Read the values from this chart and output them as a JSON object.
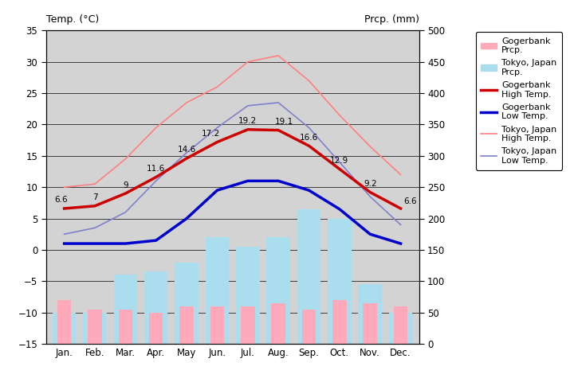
{
  "months": [
    "Jan.",
    "Feb.",
    "Mar.",
    "Apr.",
    "May",
    "Jun.",
    "Jul.",
    "Aug.",
    "Sep.",
    "Oct.",
    "Nov.",
    "Dec."
  ],
  "gogerbank_high": [
    6.6,
    7.0,
    9.0,
    11.6,
    14.6,
    17.2,
    19.2,
    19.1,
    16.6,
    12.9,
    9.2,
    6.6
  ],
  "gogerbank_low": [
    1.0,
    1.0,
    1.0,
    1.5,
    5.0,
    9.5,
    11.0,
    11.0,
    9.5,
    6.5,
    2.5,
    1.0
  ],
  "tokyo_high": [
    10.0,
    10.5,
    14.5,
    19.5,
    23.5,
    26.0,
    30.0,
    31.0,
    27.0,
    21.5,
    16.5,
    12.0
  ],
  "tokyo_low": [
    2.5,
    3.5,
    6.0,
    11.0,
    15.5,
    19.5,
    23.0,
    23.5,
    19.5,
    14.0,
    8.5,
    4.0
  ],
  "gogerbank_prcp_top": [
    -8.0,
    -9.5,
    -9.5,
    -10.0,
    -9.0,
    -9.0,
    -9.0,
    -8.5,
    -9.5,
    -8.0,
    -8.5,
    -9.0
  ],
  "tokyo_prcp_top": [
    -10.0,
    -10.0,
    -4.0,
    -3.5,
    -2.0,
    2.0,
    0.5,
    2.0,
    6.5,
    5.0,
    -5.5,
    -10.0
  ],
  "labels_high": [
    "6.6",
    "7",
    "9",
    "11.6",
    "14.6",
    "17.2",
    "19.2",
    "19.1",
    "16.6",
    "12.9",
    "9.2",
    "6.6"
  ],
  "plot_bg_color": "#d3d3d3",
  "gogerbank_high_color": "#cc0000",
  "gogerbank_low_color": "#0000cc",
  "tokyo_high_color": "#ff8080",
  "tokyo_low_color": "#8080cc",
  "gogerbank_prcp_color": "#ffaabb",
  "tokyo_prcp_color": "#aaddee",
  "title_left": "Temp. (°C)",
  "title_right": "Prcp. (mm)",
  "ylim_left": [
    -15,
    35
  ],
  "ylim_right": [
    0,
    500
  ],
  "yticks_left": [
    -15,
    -10,
    -5,
    0,
    5,
    10,
    15,
    20,
    25,
    30,
    35
  ],
  "yticks_right": [
    0,
    50,
    100,
    150,
    200,
    250,
    300,
    350,
    400,
    450,
    500
  ]
}
